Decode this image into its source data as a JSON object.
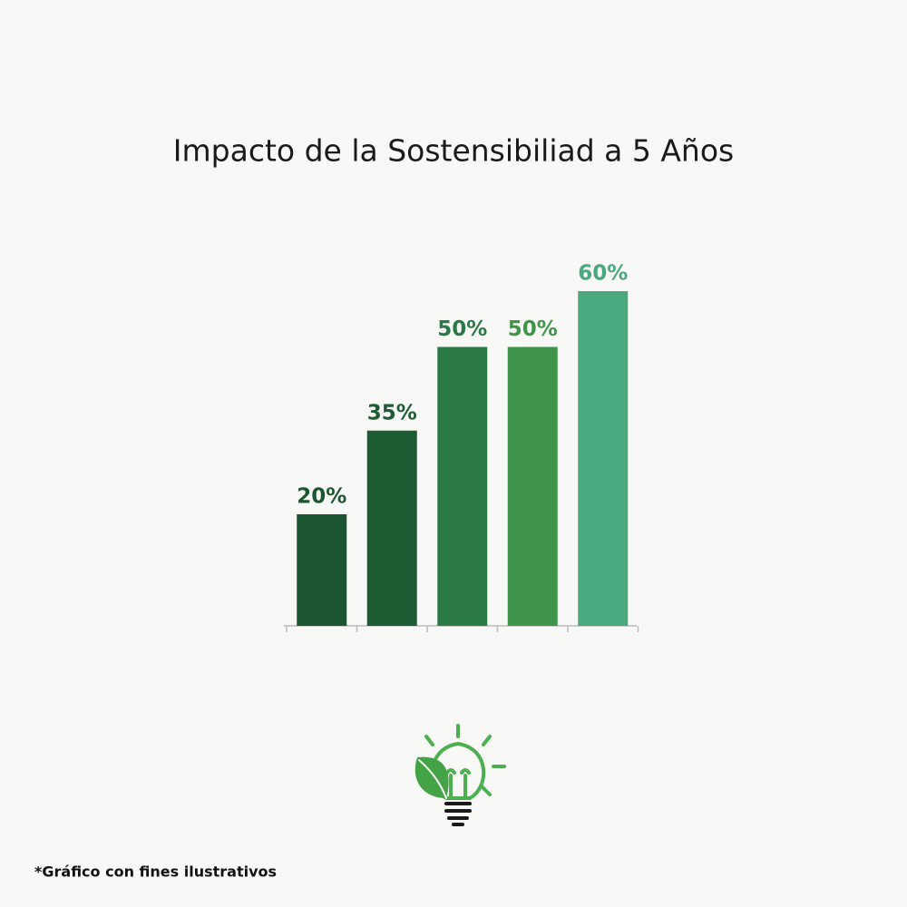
{
  "chart_data": {
    "type": "bar",
    "title": "Impacto de la Sostensibiliad a 5 Años",
    "values": [
      20,
      35,
      50,
      50,
      60
    ],
    "value_labels": [
      "20%",
      "35%",
      "50%",
      "50%",
      "60%"
    ],
    "colors": [
      "#1b5631",
      "#1d5b33",
      "#2b7a45",
      "#3f9549",
      "#4aa87e"
    ],
    "footnote": "*Gráfico con fines ilustrativos"
  }
}
